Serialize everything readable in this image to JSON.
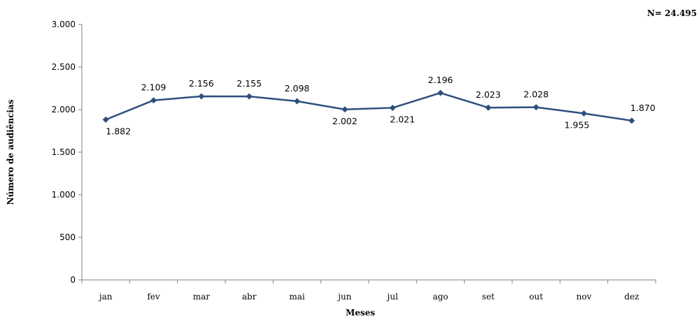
{
  "chart_data": {
    "type": "line",
    "categories": [
      "jan",
      "fev",
      "mar",
      "abr",
      "mai",
      "jun",
      "jul",
      "ago",
      "set",
      "out",
      "nov",
      "dez"
    ],
    "series": [
      {
        "values": [
          1882,
          2109,
          2156,
          2155,
          2098,
          2002,
          2021,
          2196,
          2023,
          2028,
          1955,
          1870
        ],
        "labels": [
          "1.882",
          "2.109",
          "2.156",
          "2.155",
          "2.098",
          "2.002",
          "2.021",
          "2.196",
          "2.023",
          "2.028",
          "1.955",
          "1.870"
        ],
        "color": "#2E4F7E",
        "marker": "diamond"
      }
    ],
    "ylim": [
      0,
      3000
    ],
    "yticks": [
      0,
      500,
      1000,
      1500,
      2000,
      2500,
      3000
    ],
    "ytick_labels": [
      "0",
      "500",
      "1.000",
      "1.500",
      "2.000",
      "2.500",
      "3.000"
    ],
    "xlabel": "Meses",
    "ylabel": "Número de audiências",
    "grid": false,
    "note": "N= 24.495"
  }
}
